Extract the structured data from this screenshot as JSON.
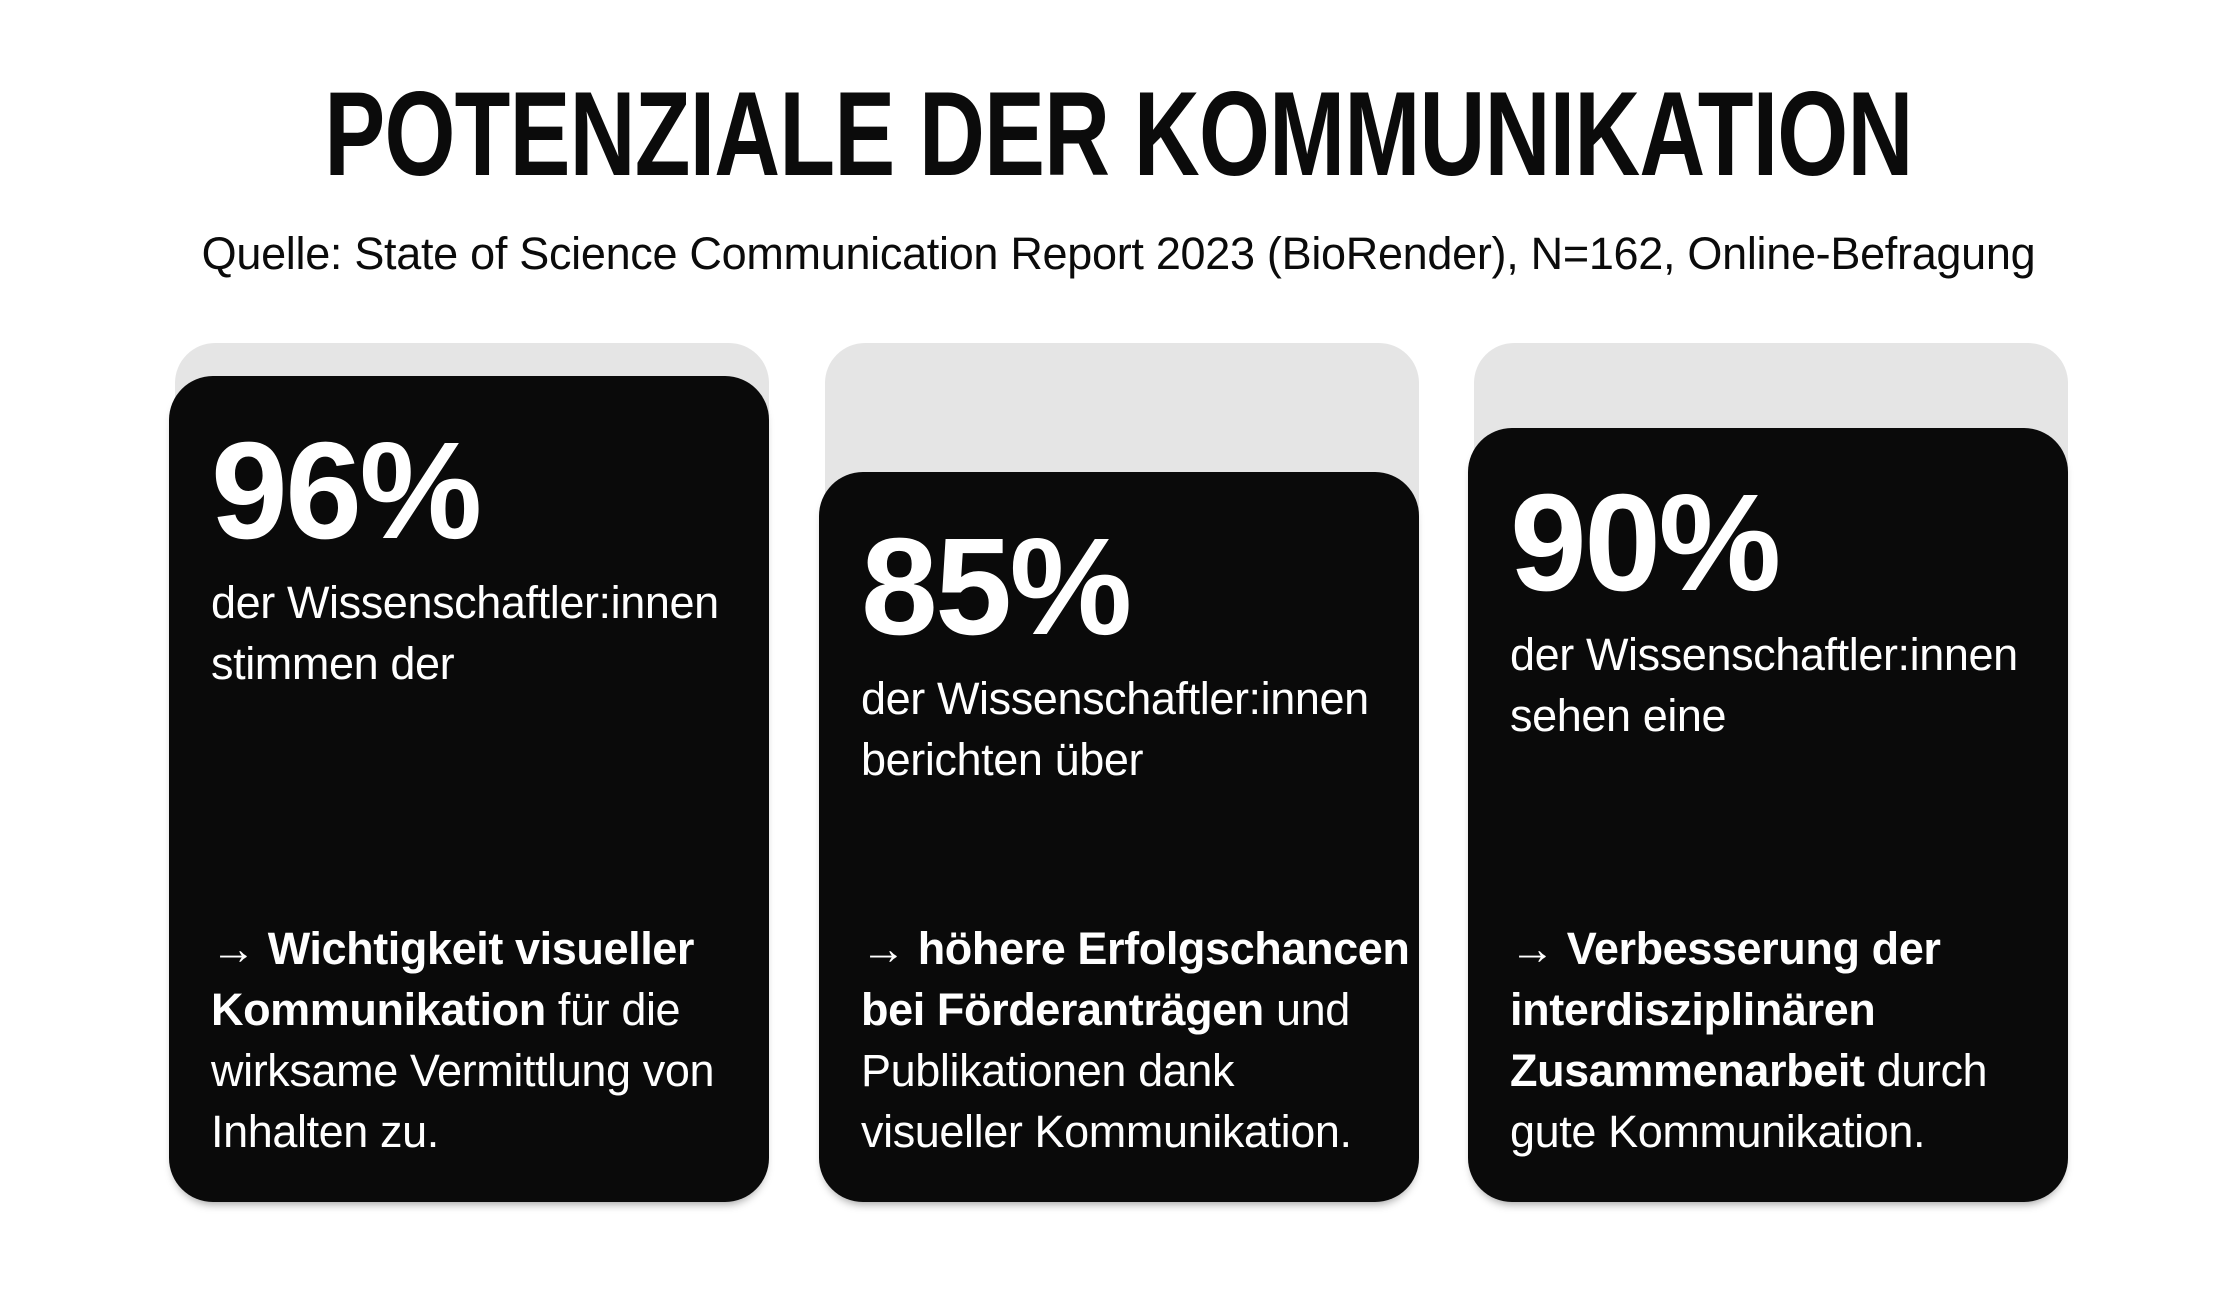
{
  "header": {
    "title": "POTENZIALE DER KOMMUNIKATION",
    "source": "Quelle: State of Science Communication Report 2023 (BioRender), N=162, Online-Befragung"
  },
  "colors": {
    "background": "#ffffff",
    "heading_text": "#0b0b0b",
    "card": "#0a0a0a",
    "card_ghost": "#e5e5e5",
    "card_text": "#ffffff"
  },
  "arrow_glyph": "→",
  "cards": [
    {
      "stat": "96%",
      "lead_lines": [
        "der Wissenschaftler:innen",
        "stimmen der"
      ],
      "takeaway_lines": [
        [
          {
            "text": "→ ",
            "bold": false,
            "icon": "arrow-right"
          },
          {
            "text": "Wichtigkeit visueller",
            "bold": true
          }
        ],
        [
          {
            "text": "Kommunikation",
            "bold": true
          },
          {
            "text": " für die",
            "bold": false
          }
        ],
        [
          {
            "text": "wirksame Vermittlung von",
            "bold": false
          }
        ],
        [
          {
            "text": "Inhalten zu.",
            "bold": false
          }
        ]
      ]
    },
    {
      "stat": "85%",
      "lead_lines": [
        "der Wissenschaftler:innen",
        "berichten über"
      ],
      "takeaway_lines": [
        [
          {
            "text": "→ ",
            "bold": false,
            "icon": "arrow-right"
          },
          {
            "text": "höhere Erfolgschancen",
            "bold": true
          }
        ],
        [
          {
            "text": "bei Förderanträgen",
            "bold": true
          },
          {
            "text": " und",
            "bold": false
          }
        ],
        [
          {
            "text": "Publikationen dank",
            "bold": false
          }
        ],
        [
          {
            "text": "visueller Kommunikation.",
            "bold": false
          }
        ]
      ]
    },
    {
      "stat": "90%",
      "lead_lines": [
        "der Wissenschaftler:innen",
        "sehen eine"
      ],
      "takeaway_lines": [
        [
          {
            "text": "→ ",
            "bold": false,
            "icon": "arrow-right"
          },
          {
            "text": "Verbesserung der",
            "bold": true
          }
        ],
        [
          {
            "text": "interdisziplinären",
            "bold": true
          }
        ],
        [
          {
            "text": "Zusammenarbeit",
            "bold": true
          },
          {
            "text": " durch",
            "bold": false
          }
        ],
        [
          {
            "text": "gute Kommunikation.",
            "bold": false
          }
        ]
      ]
    }
  ]
}
